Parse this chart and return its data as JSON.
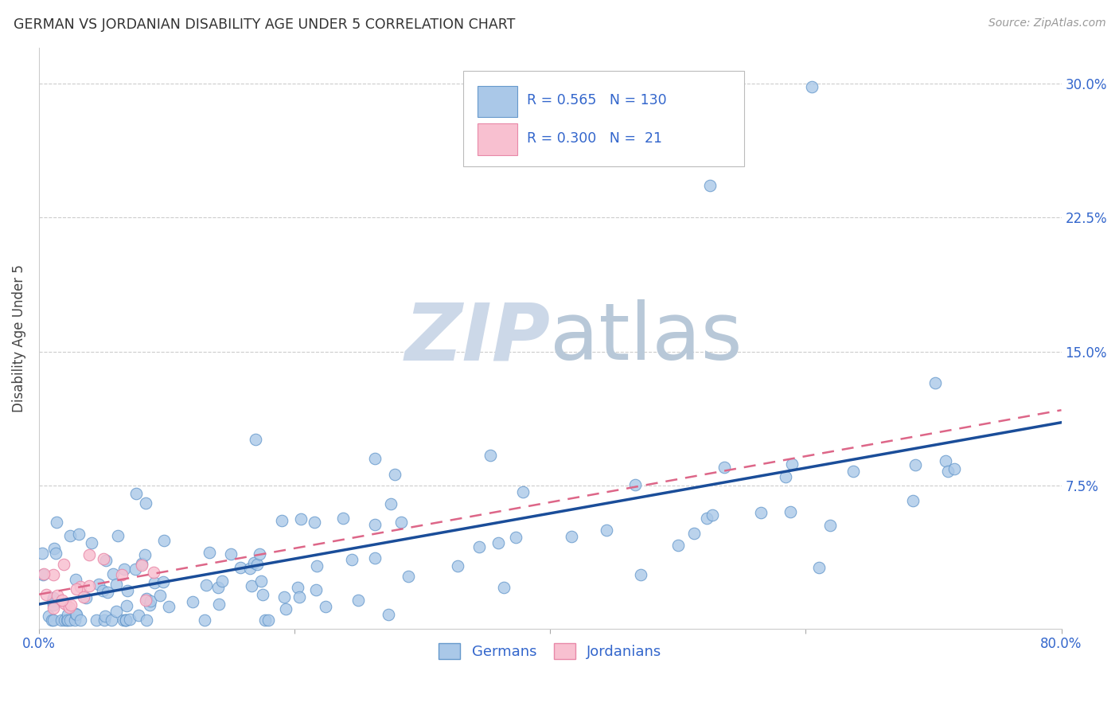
{
  "title": "GERMAN VS JORDANIAN DISABILITY AGE UNDER 5 CORRELATION CHART",
  "source": "Source: ZipAtlas.com",
  "ylabel": "Disability Age Under 5",
  "xlim": [
    0.0,
    0.8
  ],
  "ylim": [
    -0.005,
    0.32
  ],
  "xticks": [
    0.0,
    0.2,
    0.4,
    0.6,
    0.8
  ],
  "xticklabels": [
    "0.0%",
    "",
    "",
    "",
    "80.0%"
  ],
  "yticks": [
    0.0,
    0.075,
    0.15,
    0.225,
    0.3
  ],
  "yticklabels_right": [
    "",
    "7.5%",
    "15.0%",
    "22.5%",
    "30.0%"
  ],
  "german_color": "#aac8e8",
  "german_edge": "#6699cc",
  "jordanian_color": "#f8c0d0",
  "jordanian_edge": "#e888a8",
  "german_line_color": "#1a4d99",
  "jordanian_line_color": "#dd6688",
  "background_color": "#ffffff",
  "watermark_color": "#ccd8e8",
  "legend_R_german": "0.565",
  "legend_N_german": "130",
  "legend_R_jordanian": "0.300",
  "legend_N_jordanian": "21",
  "german_n": 130,
  "jordanian_n": 21
}
